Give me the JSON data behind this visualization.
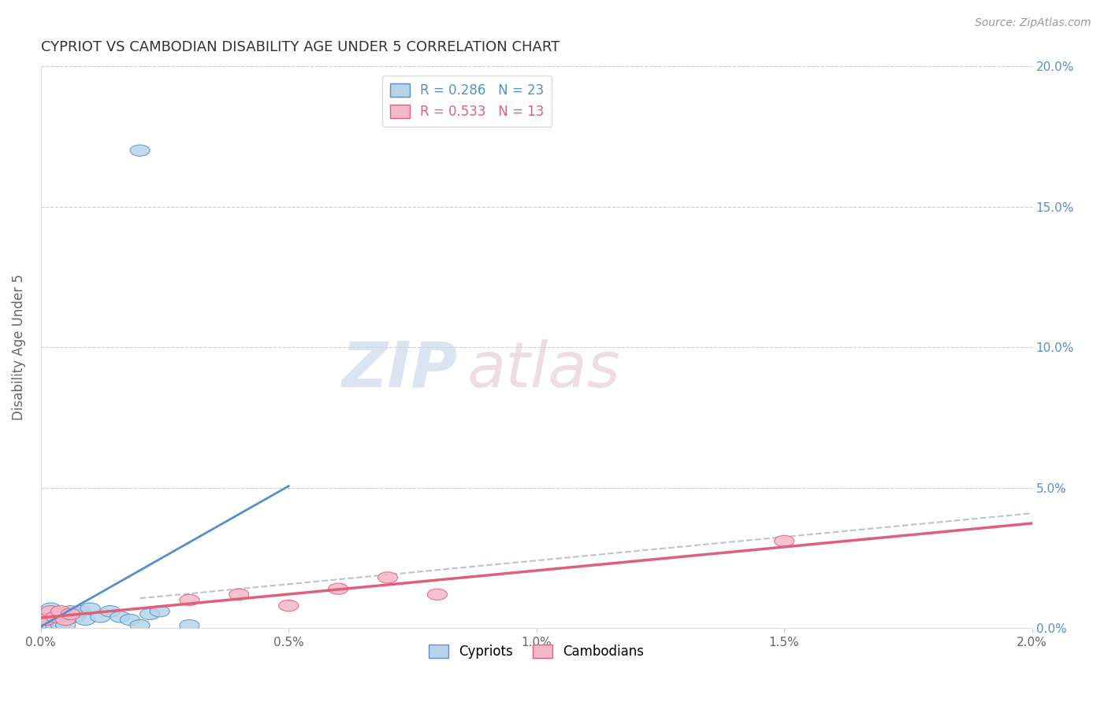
{
  "title": "CYPRIOT VS CAMBODIAN DISABILITY AGE UNDER 5 CORRELATION CHART",
  "source_text": "Source: ZipAtlas.com",
  "ylabel": "Disability Age Under 5",
  "xlim": [
    0.0,
    0.02
  ],
  "ylim": [
    0.0,
    0.2
  ],
  "ytick_labels": [
    "0.0%",
    "5.0%",
    "10.0%",
    "15.0%",
    "20.0%"
  ],
  "ytick_vals": [
    0.0,
    0.05,
    0.1,
    0.15,
    0.2
  ],
  "xtick_labels": [
    "0.0%",
    "0.5%",
    "1.0%",
    "1.5%",
    "2.0%"
  ],
  "xtick_vals": [
    0.0,
    0.005,
    0.01,
    0.015,
    0.02
  ],
  "cypriot_color": "#b8d4ea",
  "cambodian_color": "#f5b8c8",
  "cypriot_line_color": "#5590cc",
  "cambodian_line_color": "#e0607a",
  "trend_line_color": "#b8c4d0",
  "legend_R_cypriot": "R = 0.286",
  "legend_N_cypriot": "N = 23",
  "legend_R_cambodian": "R = 0.533",
  "legend_N_cambodian": "N = 13",
  "cypriot_x": [
    0.0001,
    0.0001,
    0.0002,
    0.0002,
    0.0003,
    0.0003,
    0.0004,
    0.0004,
    0.0005,
    0.0006,
    0.0007,
    0.0008,
    0.0009,
    0.001,
    0.0012,
    0.0014,
    0.0016,
    0.0018,
    0.002,
    0.0022,
    0.0024,
    0.003,
    0.002
  ],
  "cypriot_y": [
    0.002,
    0.005,
    0.003,
    0.007,
    0.001,
    0.003,
    0.001,
    0.005,
    0.001,
    0.006,
    0.004,
    0.006,
    0.003,
    0.007,
    0.004,
    0.006,
    0.004,
    0.003,
    0.001,
    0.005,
    0.006,
    0.001,
    0.17
  ],
  "cambodian_x": [
    0.0001,
    0.0002,
    0.0003,
    0.0004,
    0.0005,
    0.0006,
    0.003,
    0.004,
    0.005,
    0.006,
    0.007,
    0.008,
    0.015
  ],
  "cambodian_y": [
    0.003,
    0.006,
    0.004,
    0.006,
    0.003,
    0.005,
    0.01,
    0.012,
    0.008,
    0.014,
    0.018,
    0.012,
    0.031
  ]
}
